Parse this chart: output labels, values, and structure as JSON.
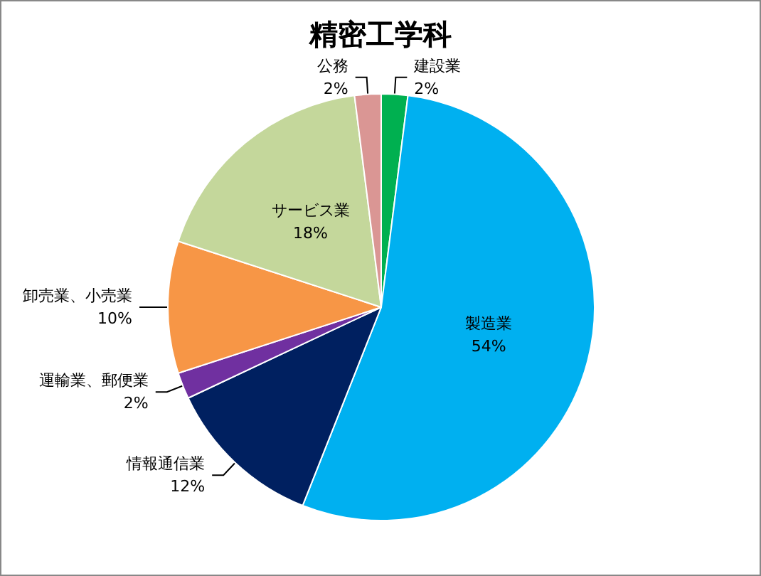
{
  "chart_data": {
    "type": "pie",
    "title": "精密工学科",
    "categories": [
      "建設業",
      "製造業",
      "情報通信業",
      "運輸業、郵便業",
      "卸売業、小売業",
      "サービス業",
      "公務"
    ],
    "values": [
      2,
      54,
      12,
      2,
      10,
      18,
      2
    ],
    "colors": [
      "#00b050",
      "#00b0f0",
      "#002060",
      "#7030a0",
      "#f79646",
      "#c4d79b",
      "#da9694"
    ],
    "value_labels": [
      "2%",
      "54%",
      "12%",
      "2%",
      "10%",
      "18%",
      "2%"
    ],
    "legend": false
  }
}
